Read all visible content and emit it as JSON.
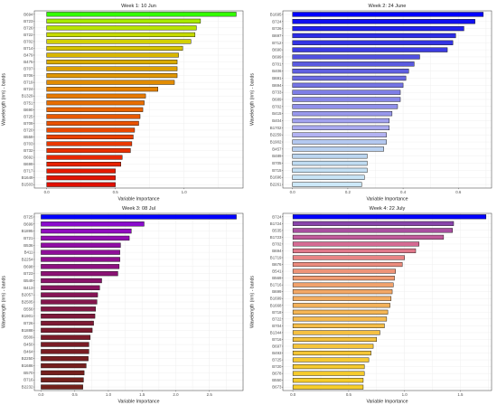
{
  "chart_data": [
    {
      "type": "bar",
      "orientation": "horizontal",
      "title": "Week 1: 10 Jun",
      "xlabel": "Variable Importance",
      "ylabel": "Wavelength (nm) - bands",
      "xlim": [
        -0.09,
        1.43
      ],
      "xticks": [
        0.0,
        0.5,
        1.0
      ],
      "xtick_labels": [
        "0.0",
        "0.5",
        "1.0"
      ],
      "grid": true,
      "categories": [
        "B694",
        "B723",
        "B726",
        "B722",
        "B702",
        "B714",
        "B479",
        "B475",
        "B707",
        "B706",
        "B719",
        "B724",
        "B1329",
        "B751",
        "B690",
        "B725",
        "B709",
        "B720",
        "B559",
        "B703",
        "B732",
        "B692",
        "B699",
        "B717",
        "B1649",
        "B1503"
      ],
      "values": [
        1.38,
        1.12,
        1.09,
        1.08,
        1.05,
        0.99,
        0.96,
        0.95,
        0.95,
        0.95,
        0.93,
        0.81,
        0.72,
        0.71,
        0.7,
        0.68,
        0.67,
        0.64,
        0.63,
        0.62,
        0.61,
        0.55,
        0.54,
        0.5,
        0.5,
        0.5
      ],
      "colors": [
        "#33ff00",
        "#a6ea00",
        "#b8e400",
        "#c5db00",
        "#d3d000",
        "#d6c300",
        "#d8b600",
        "#dbab00",
        "#dda000",
        "#e09600",
        "#e28c00",
        "#e48200",
        "#e67800",
        "#e76d00",
        "#e86300",
        "#e85a00",
        "#e95100",
        "#e94800",
        "#e94000",
        "#e93800",
        "#e83000",
        "#e72800",
        "#e62100",
        "#e41a00",
        "#e21400",
        "#e00e00"
      ]
    },
    {
      "type": "bar",
      "orientation": "horizontal",
      "title": "Week 2: 24 June",
      "xlabel": "Variable Importance",
      "ylabel": "Wavelength (nm) - bands",
      "xlim": [
        -0.035,
        0.72
      ],
      "xticks": [
        0.0,
        0.2,
        0.4,
        0.6
      ],
      "xtick_labels": [
        "0.0",
        "0.2",
        "0.4",
        "0.6"
      ],
      "grid": true,
      "categories": [
        "B1695",
        "B724",
        "B726",
        "B697",
        "B712",
        "B690",
        "B699",
        "B701",
        "B406",
        "B691",
        "B694",
        "B733",
        "B689",
        "B702",
        "B415",
        "B404",
        "B1702",
        "B2259",
        "B1902",
        "B457",
        "B489",
        "B705",
        "B715",
        "B1696",
        "B2261"
      ],
      "values": [
        0.69,
        0.66,
        0.62,
        0.59,
        0.58,
        0.56,
        0.46,
        0.44,
        0.42,
        0.41,
        0.4,
        0.39,
        0.39,
        0.38,
        0.36,
        0.35,
        0.35,
        0.34,
        0.34,
        0.33,
        0.27,
        0.27,
        0.27,
        0.26,
        0.25
      ],
      "colors": [
        "#0000ff",
        "#1010ee",
        "#2020ee",
        "#2c2ce6",
        "#3434e4",
        "#3c3ce2",
        "#5050e0",
        "#5a5ae0",
        "#6060e0",
        "#6a6ae2",
        "#7474e4",
        "#7e7ee6",
        "#8888e8",
        "#9090ea",
        "#9898ec",
        "#a2a2ee",
        "#aaaaf0",
        "#b2b2f2",
        "#b4c8f0",
        "#b8d0f0",
        "#bcd6f0",
        "#c0dcf2",
        "#c4e0f4",
        "#c8e4f6",
        "#cce8f8"
      ]
    },
    {
      "type": "bar",
      "orientation": "horizontal",
      "title": "Week 3: 08 Jul",
      "xlabel": "Variable Importance",
      "ylabel": "Wavelength (nm) - bands",
      "xlim": [
        -0.1,
        3.0
      ],
      "xticks": [
        0.0,
        0.5,
        1.0,
        1.5,
        2.0,
        2.5
      ],
      "xtick_labels": [
        "0.0",
        "0.5",
        "1.0",
        "1.5",
        "2.0",
        "2.5"
      ],
      "grid": true,
      "categories": [
        "B725",
        "B699",
        "B1895",
        "B721",
        "B536",
        "B411",
        "B2254",
        "B698",
        "B723",
        "B549",
        "B413",
        "B2057",
        "B2505",
        "B556",
        "B1901",
        "B726",
        "B1888",
        "B509",
        "B450",
        "B464",
        "B2250",
        "B1686",
        "B570",
        "B716",
        "B2232"
      ],
      "values": [
        2.9,
        1.53,
        1.34,
        1.31,
        1.18,
        1.17,
        1.17,
        1.16,
        1.14,
        0.9,
        0.87,
        0.84,
        0.83,
        0.81,
        0.8,
        0.78,
        0.76,
        0.73,
        0.71,
        0.71,
        0.7,
        0.67,
        0.64,
        0.63,
        0.62
      ],
      "colors": [
        "#0000ff",
        "#8a0ccc",
        "#8f0dbe",
        "#900eb0",
        "#900ea4",
        "#8f0f98",
        "#8e108c",
        "#8d1180",
        "#8b1274",
        "#891369",
        "#87145f",
        "#851555",
        "#83164c",
        "#811743",
        "#7f183b",
        "#7d1934",
        "#7c1a2e",
        "#7a1b29",
        "#791c25",
        "#781d22",
        "#771e20",
        "#761f1e",
        "#75201d",
        "#74211c",
        "#73221b"
      ]
    },
    {
      "type": "bar",
      "orientation": "horizontal",
      "title": "Week 4: 22 July",
      "xlabel": "Variable Importance",
      "ylabel": "Wavelength (nm) - bands",
      "xlim": [
        -0.09,
        1.78
      ],
      "xticks": [
        0.0,
        0.5,
        1.0,
        1.5
      ],
      "xtick_labels": [
        "0.0",
        "0.5",
        "1.0",
        "1.5"
      ],
      "grid": true,
      "categories": [
        "B724",
        "B1724",
        "B535",
        "B1723",
        "B702",
        "B694",
        "B1719",
        "B676",
        "B541",
        "B569",
        "B1716",
        "B699",
        "B1699",
        "B1668",
        "B718",
        "B722",
        "B704",
        "B1344",
        "B716",
        "B697",
        "B493",
        "B725",
        "B720",
        "B678",
        "B550",
        "B673"
      ],
      "values": [
        1.73,
        1.44,
        1.43,
        1.35,
        1.13,
        1.1,
        1.0,
        0.98,
        0.92,
        0.91,
        0.9,
        0.89,
        0.88,
        0.87,
        0.85,
        0.84,
        0.82,
        0.78,
        0.75,
        0.72,
        0.7,
        0.68,
        0.64,
        0.64,
        0.63,
        0.63
      ],
      "colors": [
        "#0000ff",
        "#8844aa",
        "#a94fa0",
        "#c05a9a",
        "#d46a92",
        "#e0788a",
        "#e88484",
        "#ec8c7e",
        "#ee9478",
        "#f09c72",
        "#f2a26c",
        "#f3a866",
        "#f4ad60",
        "#f4b25a",
        "#f5b654",
        "#f5ba4e",
        "#f5bd48",
        "#f5c042",
        "#f5c23e",
        "#f5c43a",
        "#f5c636",
        "#f5c833",
        "#f5ca30",
        "#f5cb2e",
        "#f5cc2c",
        "#f5cd2a"
      ]
    }
  ]
}
